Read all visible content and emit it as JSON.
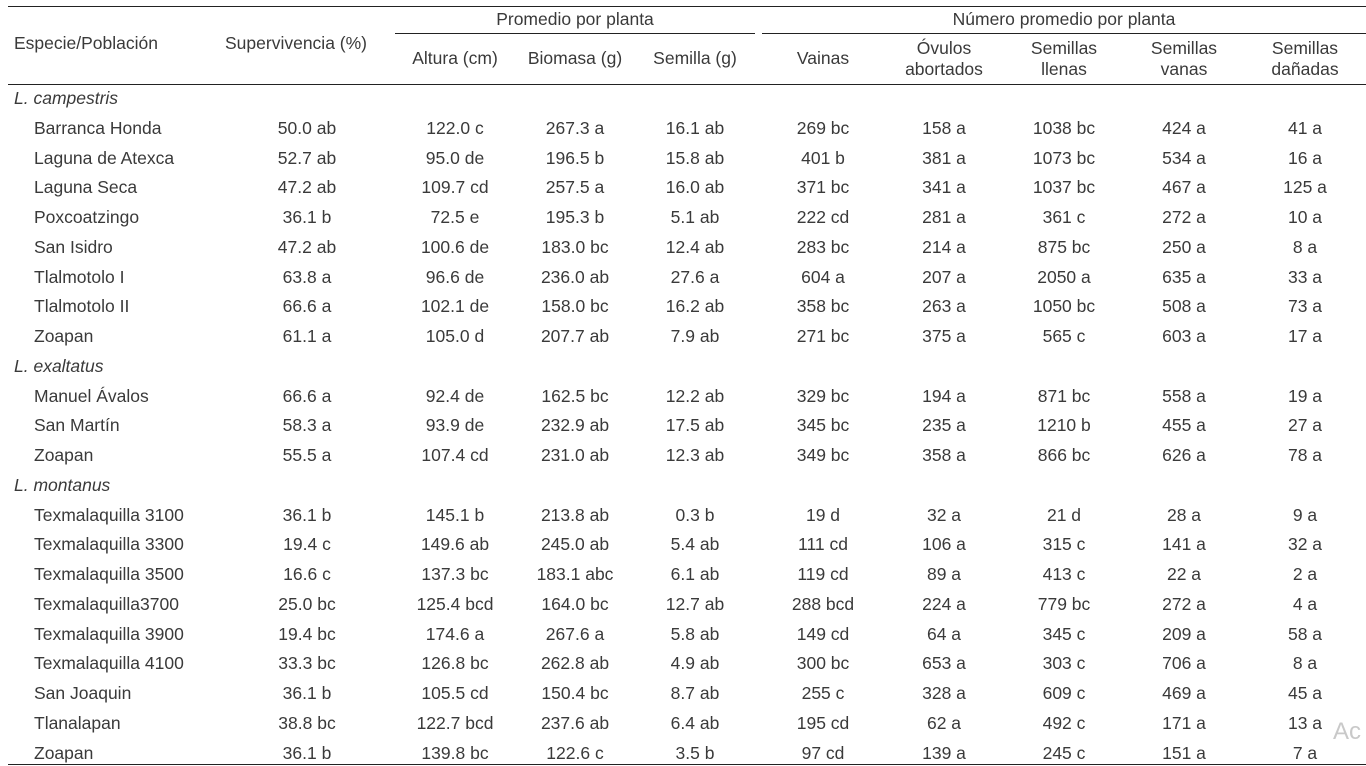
{
  "header": {
    "especie": "Especie/Población",
    "supervivencia": "Supervivencia (%)",
    "group_promedio": "Promedio por planta",
    "group_numero": "Número promedio por planta",
    "altura": "Altura (cm)",
    "biomasa": "Biomasa (g)",
    "semilla": "Semilla (g)",
    "vainas": "Vainas",
    "ovulos_1": "Óvulos",
    "ovulos_2": "abortados",
    "llenas_1": "Semillas",
    "llenas_2": "llenas",
    "vanas_1": "Semillas",
    "vanas_2": "vanas",
    "danadas_1": "Semillas",
    "danadas_2": "dañadas"
  },
  "rows": [
    {
      "type": "species",
      "name": "L. campestris"
    },
    {
      "type": "data",
      "cells": [
        "Barranca Honda",
        "50.0 ab",
        "122.0 c",
        "267.3 a",
        "16.1 ab",
        "269  bc",
        "158 a",
        "1038 bc",
        "424 a",
        "41 a"
      ]
    },
    {
      "type": "data",
      "cells": [
        "Laguna de Atexca",
        "52.7 ab",
        "95.0 de",
        "196.5 b",
        "15.8 ab",
        "401 b",
        "381 a",
        "1073 bc",
        "534 a",
        "16 a"
      ]
    },
    {
      "type": "data",
      "cells": [
        "Laguna Seca",
        "47.2 ab",
        "109.7 cd",
        "257.5 a",
        "16.0 ab",
        "371 bc",
        "341 a",
        "1037 bc",
        "467 a",
        "125 a"
      ]
    },
    {
      "type": "data",
      "cells": [
        "Poxcoatzingo",
        "36.1 b",
        "72.5 e",
        "195.3 b",
        "5.1 ab",
        "222 cd",
        "281 a",
        "361 c",
        "272 a",
        "10 a"
      ]
    },
    {
      "type": "data",
      "cells": [
        "San Isidro",
        "47.2 ab",
        "100.6 de",
        "183.0 bc",
        "12.4 ab",
        "283 bc",
        "214 a",
        "875  bc",
        "250 a",
        "8 a"
      ]
    },
    {
      "type": "data",
      "cells": [
        "Tlalmotolo I",
        "63.8 a",
        "96.6 de",
        "236.0 ab",
        "27.6 a",
        "604 a",
        "207 a",
        "2050 a",
        "635 a",
        "33 a"
      ]
    },
    {
      "type": "data",
      "cells": [
        "Tlalmotolo II",
        "66.6 a",
        "102.1 de",
        "158.0 bc",
        "16.2 ab",
        "358 bc",
        "263 a",
        "1050 bc",
        "508 a",
        "73 a"
      ]
    },
    {
      "type": "data",
      "cells": [
        "Zoapan",
        "61.1 a",
        "105.0 d",
        "207.7 ab",
        "7.9 ab",
        "271 bc",
        "375 a",
        "565 c",
        "603 a",
        "17 a"
      ]
    },
    {
      "type": "species",
      "name": "L. exaltatus"
    },
    {
      "type": "data",
      "cells": [
        "Manuel Ávalos",
        "66.6 a",
        "92.4 de",
        "162.5 bc",
        "12.2 ab",
        "329 bc",
        "194 a",
        "871 bc",
        "558 a",
        "19 a"
      ]
    },
    {
      "type": "data",
      "cells": [
        "San Martín",
        "58.3 a",
        "93.9 de",
        "232.9 ab",
        "17.5 ab",
        "345 bc",
        "235 a",
        "1210 b",
        "455 a",
        "27 a"
      ]
    },
    {
      "type": "data",
      "cells": [
        "Zoapan",
        "55.5 a",
        "107.4 cd",
        "231.0 ab",
        "12.3 ab",
        "349 bc",
        "358 a",
        "866  bc",
        "626 a",
        "78 a"
      ]
    },
    {
      "type": "species",
      "name": "L. montanus"
    },
    {
      "type": "data",
      "cells": [
        "Texmalaquilla 3100",
        "36.1 b",
        "145.1 b",
        "213.8 ab",
        "0.3 b",
        "19 d",
        "32  a",
        "21 d",
        "28 a",
        "9 a"
      ]
    },
    {
      "type": "data",
      "cells": [
        "Texmalaquilla 3300",
        "19.4 c",
        "149.6 ab",
        "245.0 ab",
        "5.4 ab",
        "111 cd",
        "106 a",
        "315 c",
        "141 a",
        "32 a"
      ]
    },
    {
      "type": "data",
      "cells": [
        "Texmalaquilla 3500",
        "16.6 c",
        "137.3 bc",
        "183.1 abc",
        "6.1 ab",
        "119 cd",
        "89  a",
        "413 c",
        "22  a",
        "2 a"
      ]
    },
    {
      "type": "data",
      "cells": [
        "Texmalaquilla3700",
        "25.0 bc",
        "125.4 bcd",
        "164.0 bc",
        "12.7 ab",
        "288 bcd",
        "224 a",
        "779 bc",
        "272 a",
        "4 a"
      ]
    },
    {
      "type": "data",
      "cells": [
        "Texmalaquilla 3900",
        "19.4 bc",
        "174.6 a",
        "267.6 a",
        "5.8 ab",
        "149 cd",
        "64  a",
        "345 c",
        "209 a",
        "58 a"
      ]
    },
    {
      "type": "data",
      "cells": [
        "Texmalaquilla 4100",
        "33.3 bc",
        "126.8 bc",
        "262.8 ab",
        "4.9 ab",
        "300 bc",
        "653 a",
        "303 c",
        "706 a",
        "8 a"
      ]
    },
    {
      "type": "data",
      "cells": [
        "San Joaquin",
        "36.1 b",
        "105.5 cd",
        "150.4 bc",
        "8.7 ab",
        "255 c",
        "328 a",
        "609 c",
        "469 a",
        "45 a"
      ]
    },
    {
      "type": "data",
      "cells": [
        "Tlanalapan",
        "38.8 bc",
        "122.7 bcd",
        "237.6 ab",
        "6.4 ab",
        "195 cd",
        "62  a",
        "492 c",
        "171 a",
        "13 a"
      ]
    },
    {
      "type": "data",
      "cells": [
        "Zoapan",
        "36.1 b",
        "139.8 bc",
        "122.6 c",
        "3.5 b",
        "97 cd",
        "139 a",
        "245 c",
        "151 a",
        "7 a"
      ]
    }
  ],
  "watermark": "Ac"
}
